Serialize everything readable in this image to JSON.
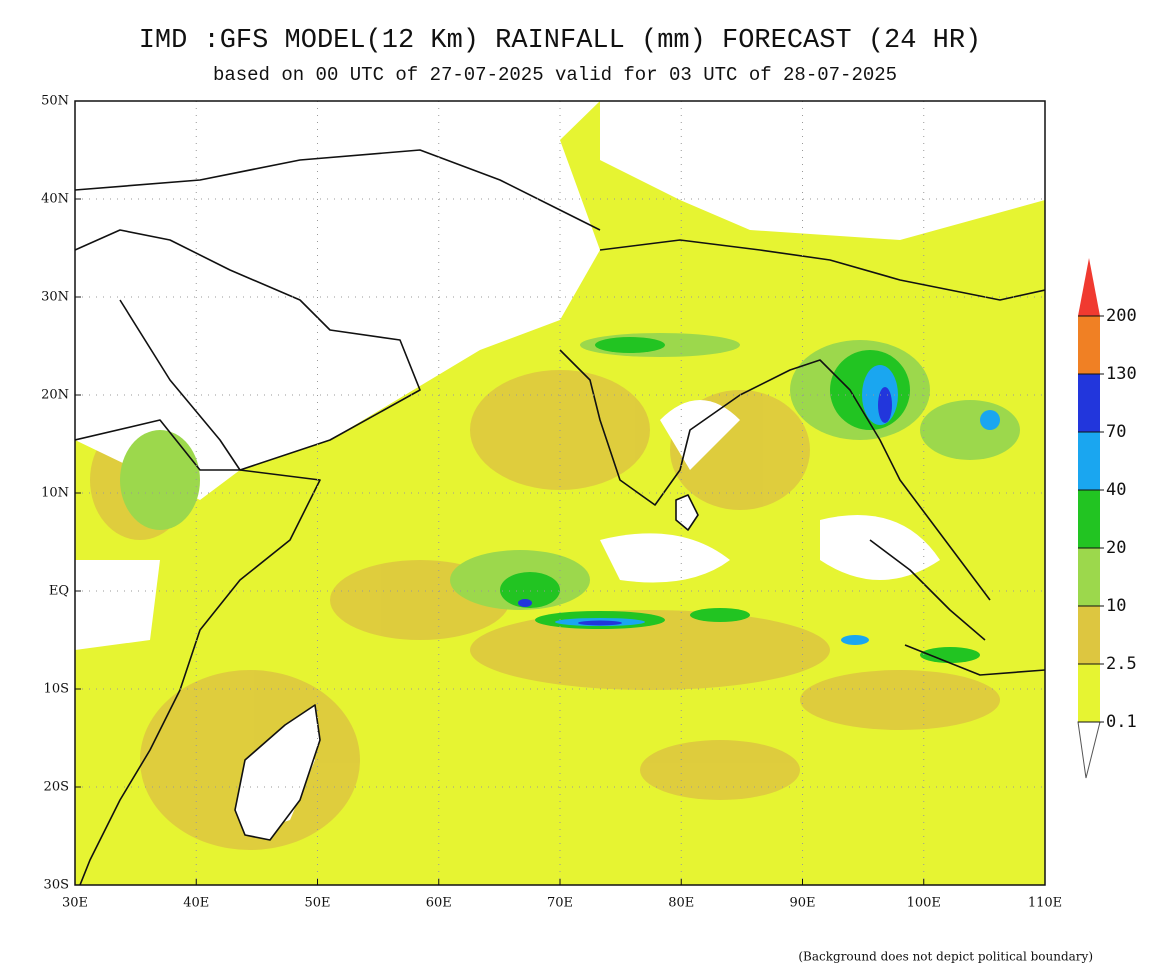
{
  "title": "IMD :GFS MODEL(12 Km) RAINFALL (mm) FORECAST (24 HR)",
  "subtitle": "based on 00 UTC of 27-07-2025 valid for 03 UTC of 28-07-2025",
  "map": {
    "lonlim": [
      30,
      110
    ],
    "latlim": [
      -30,
      50
    ],
    "lon_ticks": [
      {
        "value": 30,
        "label": "30E"
      },
      {
        "value": 40,
        "label": "40E"
      },
      {
        "value": 50,
        "label": "50E"
      },
      {
        "value": 60,
        "label": "60E"
      },
      {
        "value": 70,
        "label": "70E"
      },
      {
        "value": 80,
        "label": "80E"
      },
      {
        "value": 90,
        "label": "90E"
      },
      {
        "value": 100,
        "label": "100E"
      },
      {
        "value": 110,
        "label": "110E"
      }
    ],
    "lat_ticks": [
      {
        "value": 50,
        "label": "50N"
      },
      {
        "value": 40,
        "label": "40N"
      },
      {
        "value": 30,
        "label": "30N"
      },
      {
        "value": 20,
        "label": "20N"
      },
      {
        "value": 10,
        "label": "10N"
      },
      {
        "value": 0,
        "label": "EQ"
      },
      {
        "value": -10,
        "label": "10S"
      },
      {
        "value": -20,
        "label": "20S"
      },
      {
        "value": -30,
        "label": "30S"
      }
    ],
    "grid": true
  },
  "legend": {
    "levels": [
      0.1,
      2.5,
      10,
      20,
      40,
      70,
      130,
      200
    ],
    "colors": [
      "#ffffff",
      "#e6f432",
      "#ddc640",
      "#9cd84c",
      "#22c422",
      "#1aa6f0",
      "#2236dc",
      "#f08024",
      "#f03a30"
    ]
  },
  "footnote": "(Background does not depict political boundary)"
}
